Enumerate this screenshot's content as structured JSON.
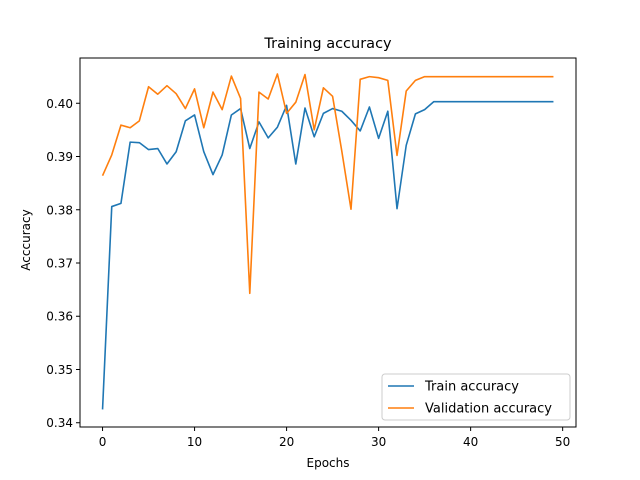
{
  "chart_data": {
    "type": "line",
    "title": "Training accuracy",
    "xlabel": "Epochs",
    "ylabel": "Acccuracy",
    "xlim": [
      -2.45,
      51.45
    ],
    "ylim": [
      0.3392,
      0.4085
    ],
    "xticks": [
      0,
      10,
      20,
      30,
      40,
      50
    ],
    "yticks": [
      0.34,
      0.35,
      0.36,
      0.37,
      0.38,
      0.39,
      0.4
    ],
    "ytick_labels": [
      "0.34",
      "0.35",
      "0.36",
      "0.37",
      "0.38",
      "0.39",
      "0.40"
    ],
    "grid": false,
    "legend_position": "lower-right",
    "x": [
      0,
      1,
      2,
      3,
      4,
      5,
      6,
      7,
      8,
      9,
      10,
      11,
      12,
      13,
      14,
      15,
      16,
      17,
      18,
      19,
      20,
      21,
      22,
      23,
      24,
      25,
      26,
      27,
      28,
      29,
      30,
      31,
      32,
      33,
      34,
      35,
      36,
      37,
      38,
      39,
      40,
      41,
      42,
      43,
      44,
      45,
      46,
      47,
      48,
      49
    ],
    "series": [
      {
        "name": "Train accuracy",
        "color": "#1f77b4",
        "values": [
          0.3425,
          0.3806,
          0.3812,
          0.3927,
          0.3926,
          0.3913,
          0.3915,
          0.3886,
          0.3909,
          0.3967,
          0.3978,
          0.3909,
          0.3866,
          0.3903,
          0.3978,
          0.399,
          0.3915,
          0.3965,
          0.3935,
          0.3955,
          0.3996,
          0.3886,
          0.3991,
          0.3937,
          0.3981,
          0.399,
          0.3985,
          0.3968,
          0.3948,
          0.3993,
          0.3934,
          0.3985,
          0.3802,
          0.3921,
          0.398,
          0.3988,
          0.4003,
          0.4003,
          0.4003,
          0.4003,
          0.4003,
          0.4003,
          0.4003,
          0.4003,
          0.4003,
          0.4003,
          0.4003,
          0.4003,
          0.4003,
          0.4003
        ]
      },
      {
        "name": "Validation accuracy",
        "color": "#ff7f0e",
        "values": [
          0.3864,
          0.3903,
          0.3959,
          0.3954,
          0.3967,
          0.4031,
          0.4017,
          0.4033,
          0.4018,
          0.399,
          0.4027,
          0.3954,
          0.4021,
          0.3988,
          0.4051,
          0.4009,
          0.3643,
          0.4021,
          0.4008,
          0.4055,
          0.3981,
          0.4002,
          0.4054,
          0.395,
          0.4029,
          0.4013,
          0.391,
          0.3801,
          0.4045,
          0.405,
          0.4048,
          0.4043,
          0.3902,
          0.4023,
          0.4043,
          0.405,
          0.405,
          0.405,
          0.405,
          0.405,
          0.405,
          0.405,
          0.405,
          0.405,
          0.405,
          0.405,
          0.405,
          0.405,
          0.405,
          0.405
        ]
      }
    ]
  }
}
